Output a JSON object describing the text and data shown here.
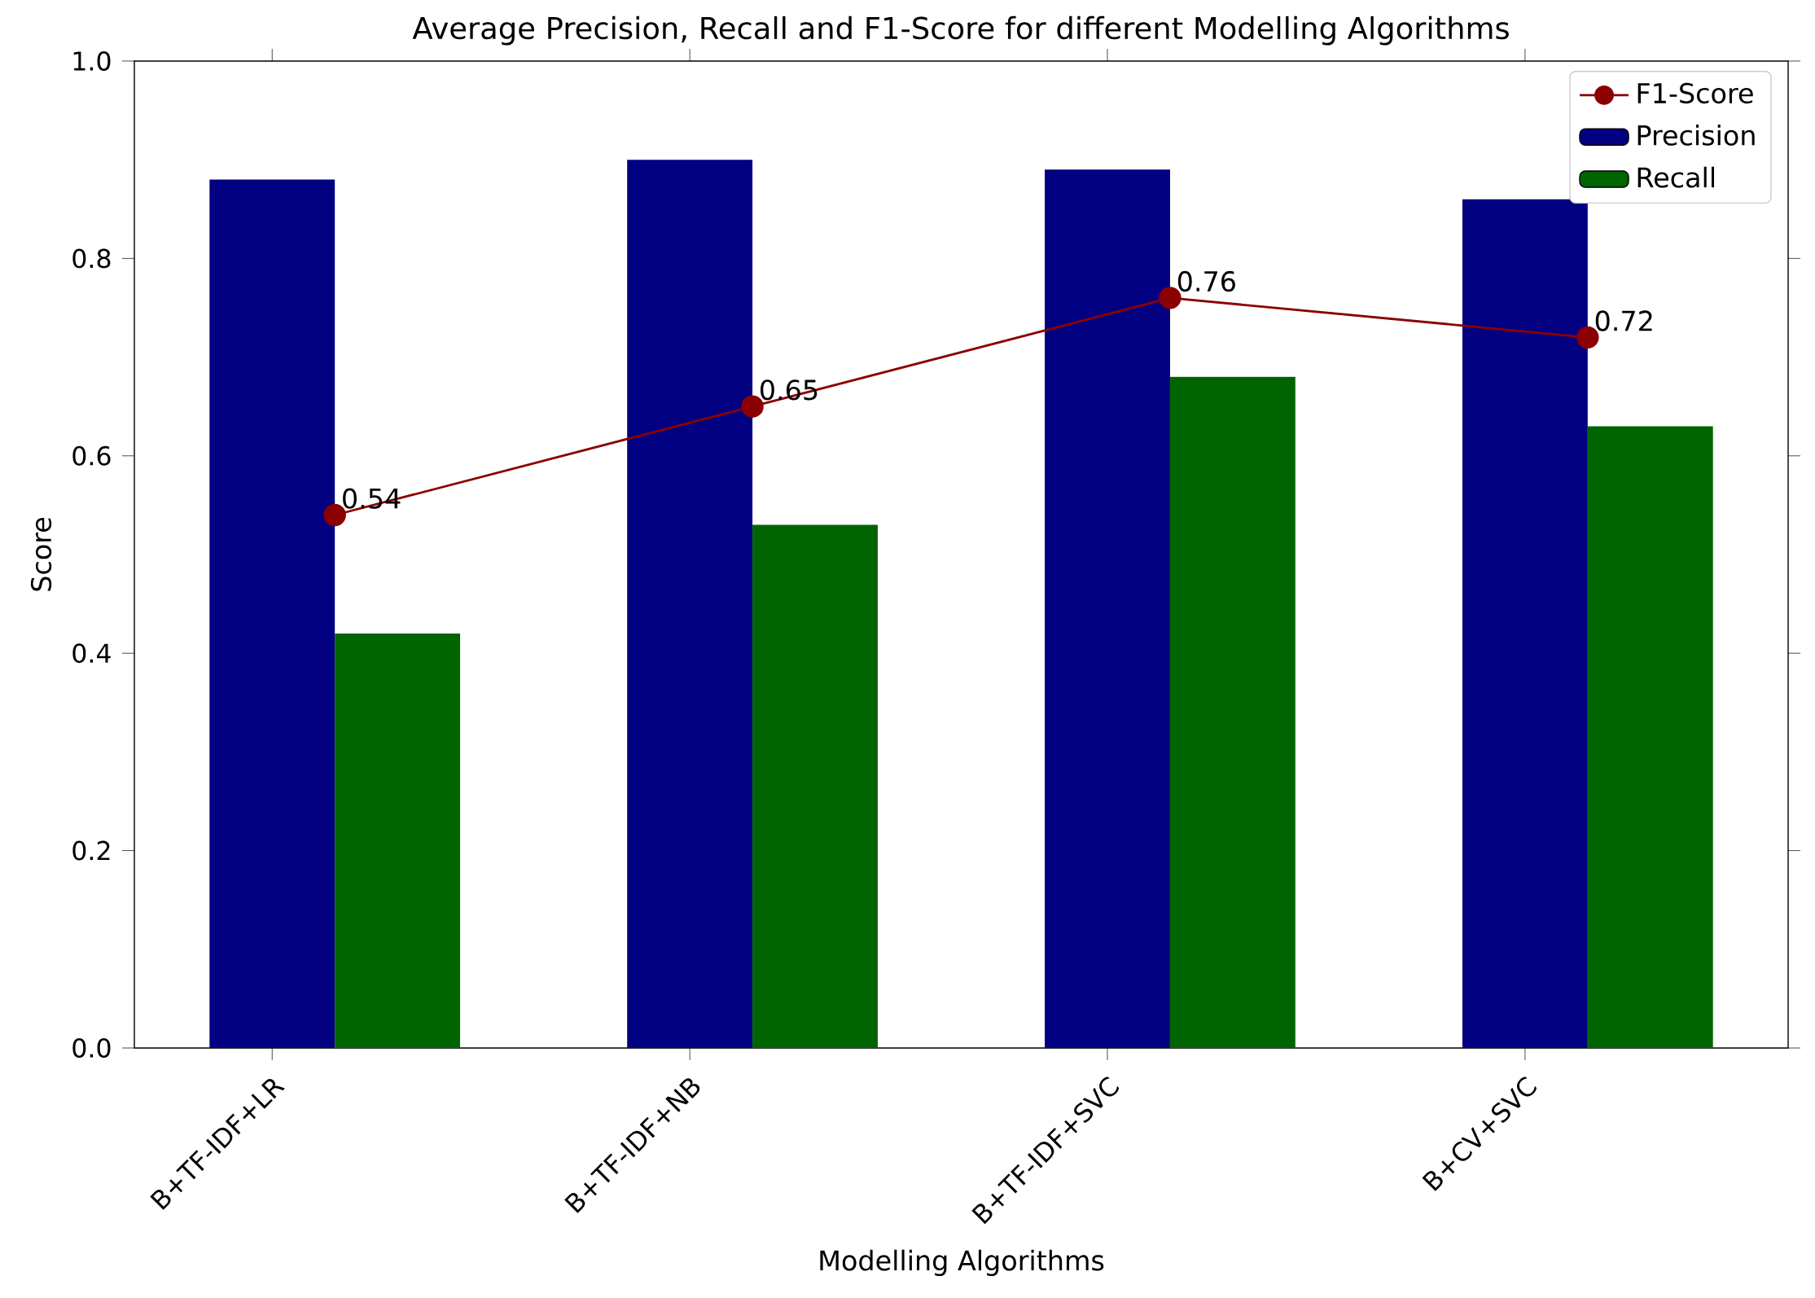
{
  "chart_data": {
    "type": "bar",
    "title": "Average Precision, Recall and F1-Score for different Modelling Algorithms",
    "xlabel": "Modelling Algorithms",
    "ylabel": "Score",
    "categories": [
      "B+TF-IDF+LR",
      "B+TF-IDF+NB",
      "B+TF-IDF+SVC",
      "B+CV+SVC"
    ],
    "series": [
      {
        "name": "F1-Score",
        "type": "line",
        "color": "#8b0000",
        "marker": "circle",
        "values": [
          0.54,
          0.65,
          0.76,
          0.72
        ],
        "value_labels": [
          "0.54",
          "0.65",
          "0.76",
          "0.72"
        ]
      },
      {
        "name": "Precision",
        "color": "#000080",
        "values": [
          0.88,
          0.9,
          0.89,
          0.86
        ]
      },
      {
        "name": "Recall",
        "color": "#006400",
        "values": [
          0.42,
          0.53,
          0.68,
          0.63
        ]
      }
    ],
    "ylim": [
      0,
      1
    ],
    "yticks": [
      {
        "value": 0,
        "label": "0.0"
      },
      0.2,
      0.4,
      0.6,
      0.8,
      {
        "value": 1,
        "label": "1.0"
      }
    ],
    "legend": "top right",
    "grid": false
  }
}
